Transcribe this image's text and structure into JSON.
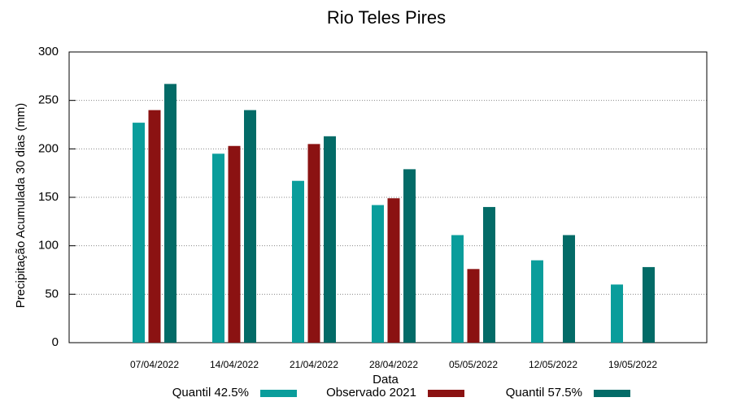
{
  "chart_data": {
    "type": "bar",
    "title": "Rio Teles Pires",
    "x_label": "Data",
    "y_label": "Precipitação Acumulada 30 dias (mm)",
    "categories": [
      "07/04/2022",
      "14/04/2022",
      "21/04/2022",
      "28/04/2022",
      "05/05/2022",
      "12/05/2022",
      "19/05/2022"
    ],
    "series": [
      {
        "name": "Quantil 42.5%",
        "color": "#0a9d9b",
        "values": [
          227,
          195,
          167,
          142,
          111,
          85,
          60
        ]
      },
      {
        "name": "Observado 2021",
        "color": "#8b1212",
        "values": [
          240,
          203,
          205,
          149,
          76,
          null,
          null
        ]
      },
      {
        "name": "Quantil 57.5%",
        "color": "#036b67",
        "values": [
          267,
          240,
          213,
          179,
          140,
          111,
          78
        ]
      }
    ],
    "ylim": [
      0,
      300
    ],
    "yticks": [
      0,
      50,
      100,
      150,
      200,
      250,
      300
    ],
    "grid": true,
    "legend": "bottom"
  }
}
